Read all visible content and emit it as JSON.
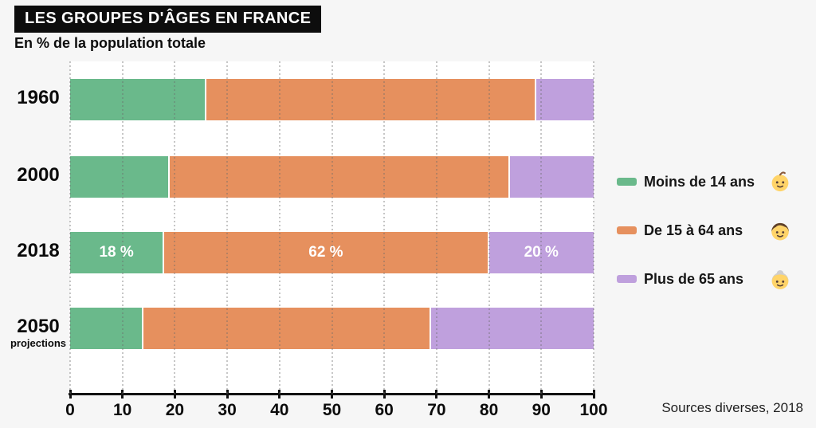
{
  "header": {
    "title": "LES GROUPES D'ÂGES EN FRANCE",
    "subtitle": "En % de la population totale"
  },
  "footer": {
    "source": "Sources diverses, 2018"
  },
  "colors": {
    "background": "#f6f6f6",
    "plot_background": "#ffffff",
    "title_bar": "#0d0d0d",
    "axis": "#121212",
    "bar_label_text": "#ffffff",
    "green": "#6ab98b",
    "orange": "#e6905e",
    "purple": "#bfa0dd"
  },
  "chart_data": {
    "type": "bar",
    "orientation": "horizontal",
    "stacked": true,
    "title": "LES GROUPES D'ÂGES EN FRANCE",
    "subtitle": "En % de la population totale",
    "xlabel": "% de la population totale",
    "xlim": [
      0,
      100
    ],
    "x_ticks": [
      0,
      10,
      20,
      30,
      40,
      50,
      60,
      70,
      80,
      90,
      100
    ],
    "grid": "dotted-vertical",
    "legend_position": "right",
    "categories": [
      {
        "label": "1960",
        "note": ""
      },
      {
        "label": "2000",
        "note": ""
      },
      {
        "label": "2018",
        "note": ""
      },
      {
        "label": "2050",
        "note": "projections"
      }
    ],
    "series": [
      {
        "name": "Moins de 14 ans",
        "icon": "baby",
        "color": "#6ab98b",
        "values": [
          26,
          19,
          18,
          14
        ]
      },
      {
        "name": "De 15 à 64 ans",
        "icon": "boy",
        "color": "#e6905e",
        "values": [
          63,
          65,
          62,
          55
        ]
      },
      {
        "name": "Plus de 65 ans",
        "icon": "grandma",
        "color": "#bfa0dd",
        "values": [
          11,
          16,
          20,
          31
        ]
      }
    ],
    "value_labels": {
      "category": "2018",
      "labels": [
        "18 %",
        "62 %",
        "20 %"
      ]
    }
  }
}
